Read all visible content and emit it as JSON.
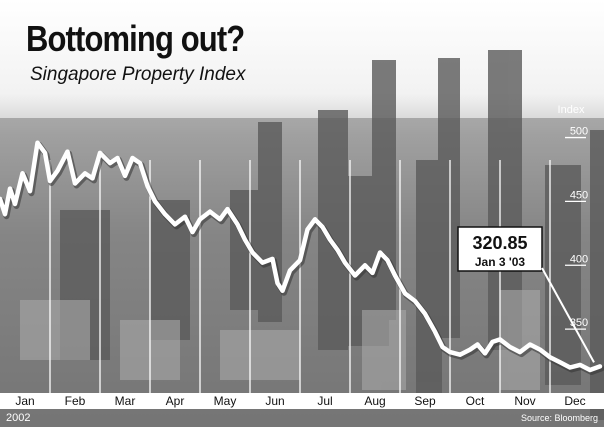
{
  "title": "Bottoming out?",
  "subtitle": "Singapore Property Index",
  "source": "Source: Bloomberg",
  "colors": {
    "line": "#ffffff",
    "axis_band": "#ffffff",
    "text": "#111111"
  },
  "callout": {
    "value": "320.85",
    "date": "Jan 3 '03"
  },
  "chart_data": {
    "type": "line",
    "title": "Bottoming out?",
    "subtitle": "Singapore Property Index",
    "y_axis_label": "Index",
    "y_ticks": [
      350,
      400,
      450,
      500
    ],
    "ylim": [
      300,
      520
    ],
    "x_categories": [
      "Jan",
      "Feb",
      "Mar",
      "Apr",
      "May",
      "Jun",
      "Jul",
      "Aug",
      "Sep",
      "Oct",
      "Nov",
      "Dec"
    ],
    "x_year_label": "2002",
    "grid": "vertical month separators",
    "series": [
      {
        "values": [
          {
            "month": 0.0,
            "y": 452
          },
          {
            "month": 0.1,
            "y": 440
          },
          {
            "month": 0.2,
            "y": 460
          },
          {
            "month": 0.3,
            "y": 448
          },
          {
            "month": 0.45,
            "y": 472
          },
          {
            "month": 0.6,
            "y": 458
          },
          {
            "month": 0.75,
            "y": 496
          },
          {
            "month": 0.9,
            "y": 488
          },
          {
            "month": 1.0,
            "y": 466
          },
          {
            "month": 1.15,
            "y": 474
          },
          {
            "month": 1.35,
            "y": 489
          },
          {
            "month": 1.5,
            "y": 464
          },
          {
            "month": 1.7,
            "y": 472
          },
          {
            "month": 1.85,
            "y": 468
          },
          {
            "month": 2.0,
            "y": 488
          },
          {
            "month": 2.2,
            "y": 480
          },
          {
            "month": 2.35,
            "y": 484
          },
          {
            "month": 2.5,
            "y": 470
          },
          {
            "month": 2.65,
            "y": 484
          },
          {
            "month": 2.8,
            "y": 480
          },
          {
            "month": 2.95,
            "y": 462
          },
          {
            "month": 3.1,
            "y": 450
          },
          {
            "month": 3.3,
            "y": 440
          },
          {
            "month": 3.5,
            "y": 432
          },
          {
            "month": 3.7,
            "y": 438
          },
          {
            "month": 3.85,
            "y": 426
          },
          {
            "month": 4.0,
            "y": 436
          },
          {
            "month": 4.2,
            "y": 442
          },
          {
            "month": 4.4,
            "y": 436
          },
          {
            "month": 4.55,
            "y": 444
          },
          {
            "month": 4.75,
            "y": 432
          },
          {
            "month": 4.9,
            "y": 420
          },
          {
            "month": 5.05,
            "y": 410
          },
          {
            "month": 5.25,
            "y": 402
          },
          {
            "month": 5.45,
            "y": 405
          },
          {
            "month": 5.55,
            "y": 386
          },
          {
            "month": 5.65,
            "y": 380
          },
          {
            "month": 5.8,
            "y": 396
          },
          {
            "month": 6.0,
            "y": 404
          },
          {
            "month": 6.15,
            "y": 428
          },
          {
            "month": 6.3,
            "y": 436
          },
          {
            "month": 6.45,
            "y": 430
          },
          {
            "month": 6.6,
            "y": 420
          },
          {
            "month": 6.75,
            "y": 412
          },
          {
            "month": 6.9,
            "y": 402
          },
          {
            "month": 7.1,
            "y": 392
          },
          {
            "month": 7.3,
            "y": 400
          },
          {
            "month": 7.45,
            "y": 394
          },
          {
            "month": 7.6,
            "y": 410
          },
          {
            "month": 7.75,
            "y": 404
          },
          {
            "month": 7.9,
            "y": 392
          },
          {
            "month": 8.1,
            "y": 378
          },
          {
            "month": 8.3,
            "y": 372
          },
          {
            "month": 8.5,
            "y": 362
          },
          {
            "month": 8.7,
            "y": 348
          },
          {
            "month": 8.85,
            "y": 336
          },
          {
            "month": 9.0,
            "y": 332
          },
          {
            "month": 9.2,
            "y": 330
          },
          {
            "month": 9.4,
            "y": 334
          },
          {
            "month": 9.55,
            "y": 338
          },
          {
            "month": 9.7,
            "y": 331
          },
          {
            "month": 9.85,
            "y": 340
          },
          {
            "month": 10.0,
            "y": 342
          },
          {
            "month": 10.2,
            "y": 336
          },
          {
            "month": 10.4,
            "y": 332
          },
          {
            "month": 10.6,
            "y": 338
          },
          {
            "month": 10.8,
            "y": 334
          },
          {
            "month": 11.0,
            "y": 328
          },
          {
            "month": 11.2,
            "y": 324
          },
          {
            "month": 11.4,
            "y": 320
          },
          {
            "month": 11.6,
            "y": 322
          },
          {
            "month": 11.8,
            "y": 318
          },
          {
            "month": 12.0,
            "y": 320.85
          }
        ]
      }
    ]
  }
}
